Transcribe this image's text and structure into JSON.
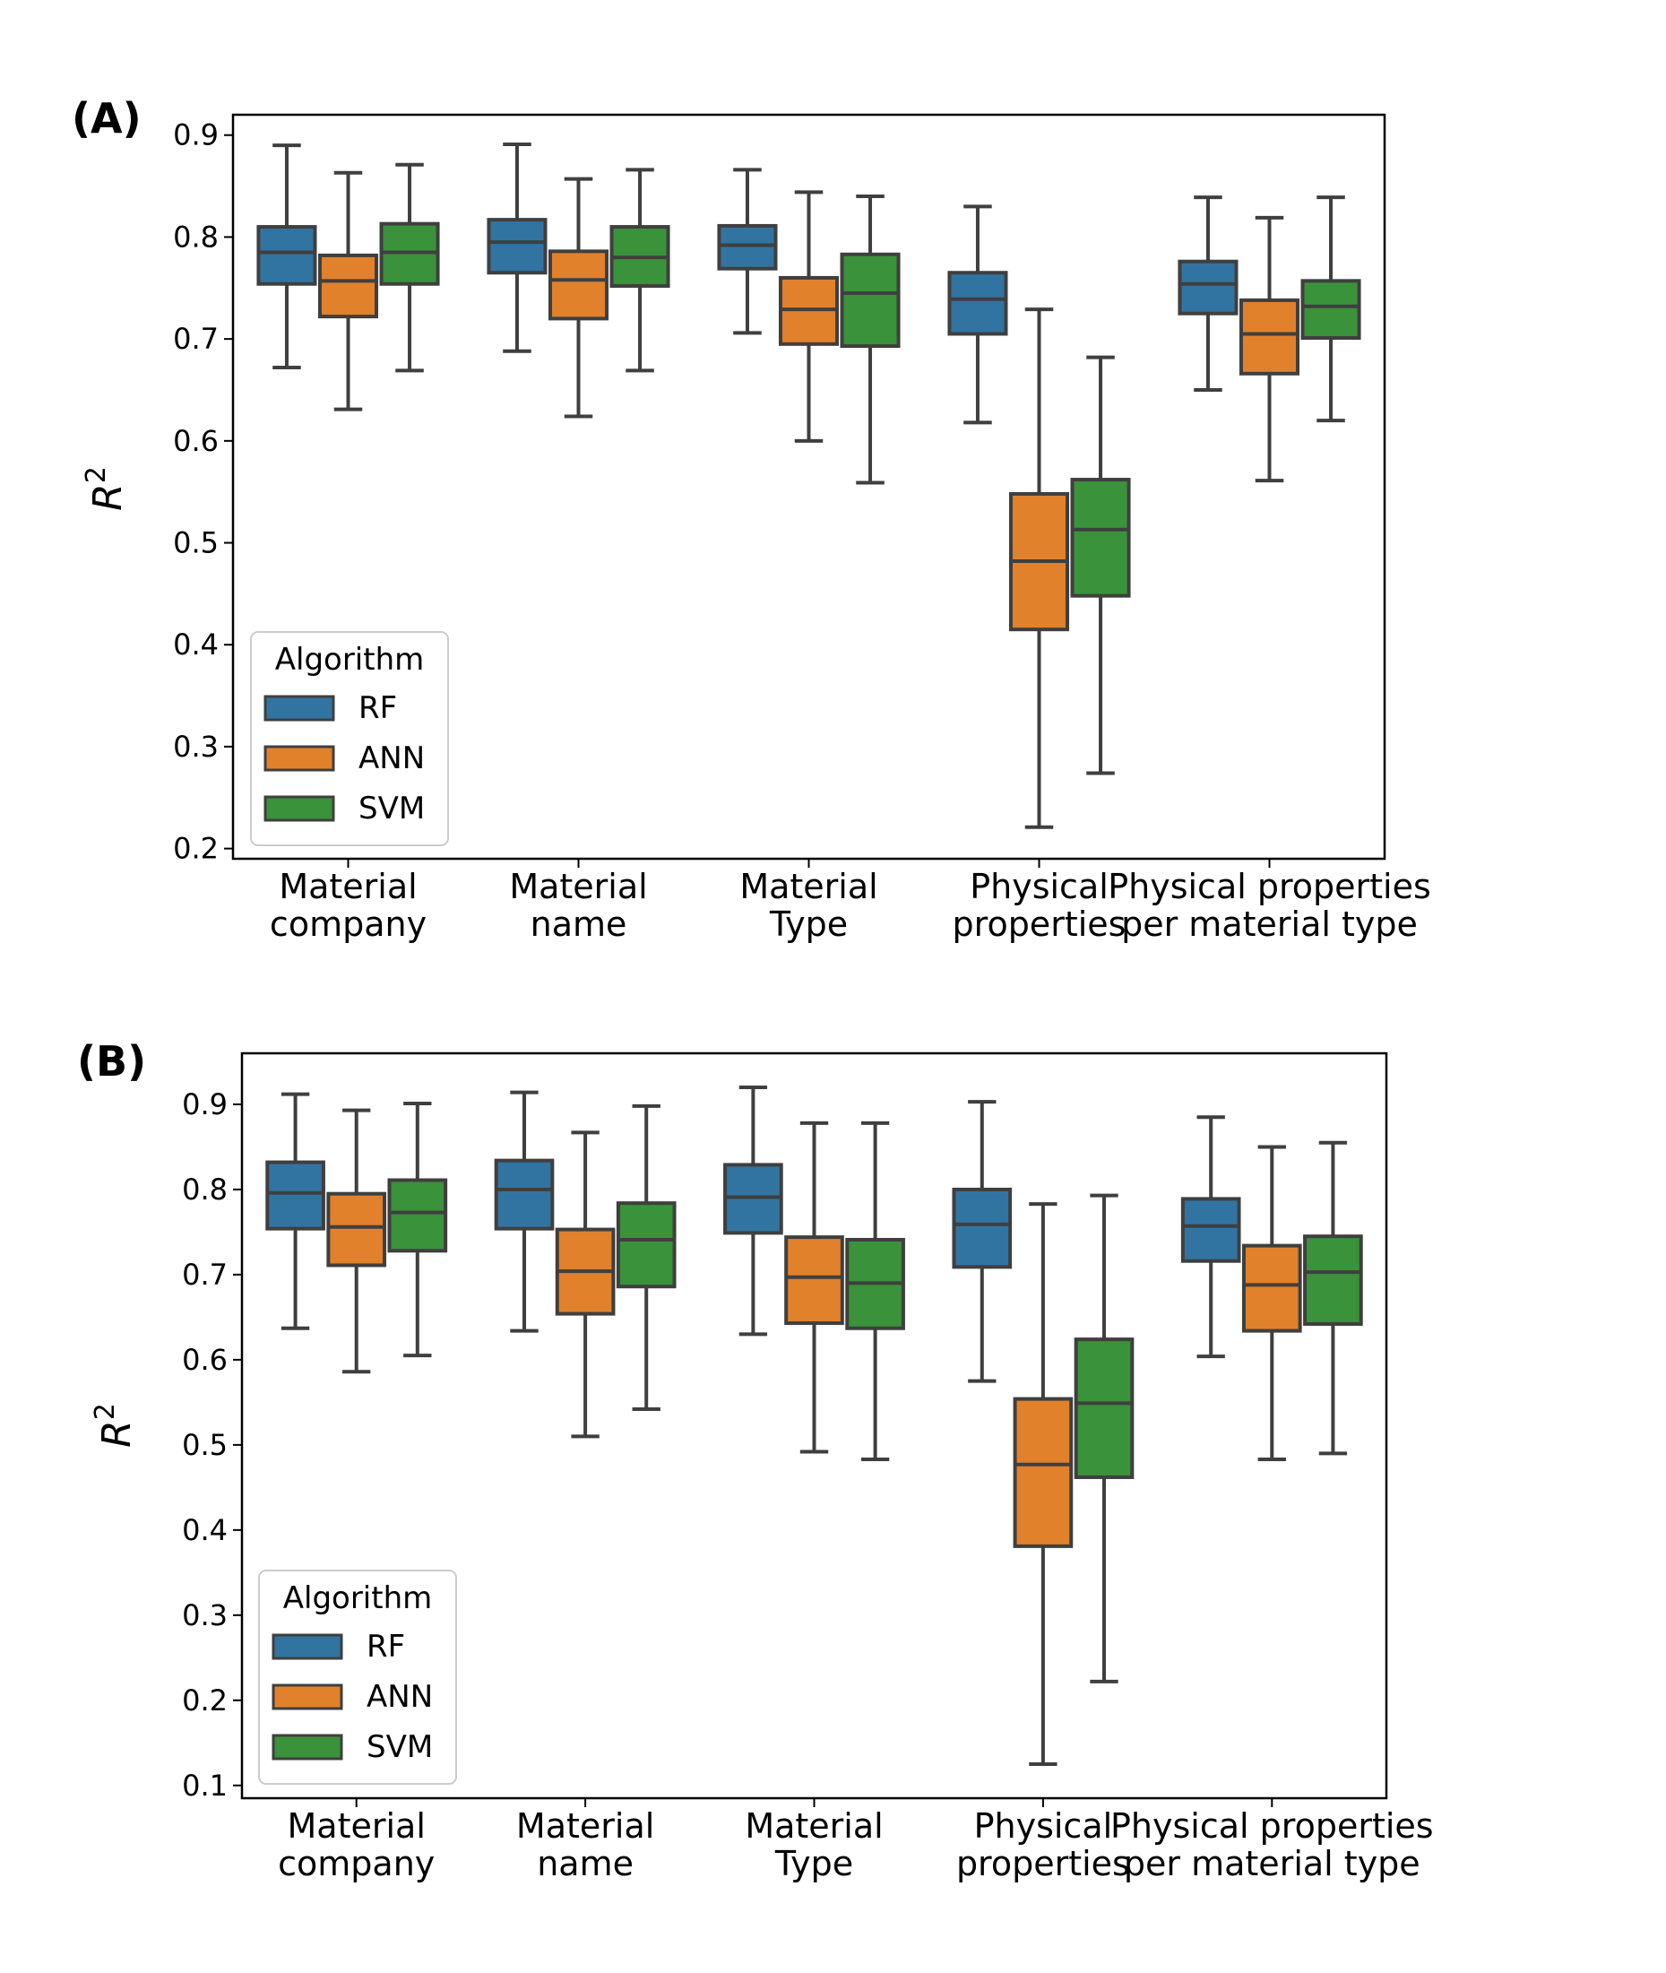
{
  "chart_data": [
    {
      "panel_label": "(A)",
      "type": "box",
      "ylabel": "R",
      "ylabel_superscript": "2",
      "ylim": [
        0.19,
        0.92
      ],
      "yticks": [
        "0.2",
        "0.3",
        "0.4",
        "0.5",
        "0.6",
        "0.7",
        "0.8",
        "0.9"
      ],
      "categories": [
        [
          "Material",
          "company"
        ],
        [
          "Material",
          "name"
        ],
        [
          "Material",
          "Type"
        ],
        [
          "Physical",
          "properties"
        ],
        [
          "Physical properties",
          "per material type"
        ]
      ],
      "legend": {
        "title": "Algorithm",
        "position": "lower-left"
      },
      "grid": false,
      "series": [
        {
          "name": "RF",
          "color": "#3274a1",
          "boxes": [
            {
              "min": 0.672,
              "q1": 0.754,
              "median": 0.785,
              "q3": 0.81,
              "max": 0.89
            },
            {
              "min": 0.688,
              "q1": 0.765,
              "median": 0.795,
              "q3": 0.817,
              "max": 0.891
            },
            {
              "min": 0.706,
              "q1": 0.769,
              "median": 0.792,
              "q3": 0.811,
              "max": 0.866
            },
            {
              "min": 0.618,
              "q1": 0.705,
              "median": 0.739,
              "q3": 0.765,
              "max": 0.83
            },
            {
              "min": 0.65,
              "q1": 0.725,
              "median": 0.754,
              "q3": 0.776,
              "max": 0.839
            }
          ]
        },
        {
          "name": "ANN",
          "color": "#e1812c",
          "boxes": [
            {
              "min": 0.631,
              "q1": 0.722,
              "median": 0.757,
              "q3": 0.782,
              "max": 0.863
            },
            {
              "min": 0.624,
              "q1": 0.72,
              "median": 0.758,
              "q3": 0.786,
              "max": 0.857
            },
            {
              "min": 0.6,
              "q1": 0.695,
              "median": 0.729,
              "q3": 0.76,
              "max": 0.844
            },
            {
              "min": 0.221,
              "q1": 0.415,
              "median": 0.482,
              "q3": 0.548,
              "max": 0.729
            },
            {
              "min": 0.561,
              "q1": 0.666,
              "median": 0.705,
              "q3": 0.738,
              "max": 0.819
            }
          ]
        },
        {
          "name": "SVM",
          "color": "#3a923a",
          "boxes": [
            {
              "min": 0.669,
              "q1": 0.754,
              "median": 0.785,
              "q3": 0.813,
              "max": 0.871
            },
            {
              "min": 0.669,
              "q1": 0.752,
              "median": 0.78,
              "q3": 0.81,
              "max": 0.866
            },
            {
              "min": 0.559,
              "q1": 0.693,
              "median": 0.745,
              "q3": 0.783,
              "max": 0.84
            },
            {
              "min": 0.274,
              "q1": 0.448,
              "median": 0.513,
              "q3": 0.562,
              "max": 0.682
            },
            {
              "min": 0.62,
              "q1": 0.701,
              "median": 0.732,
              "q3": 0.757,
              "max": 0.839
            }
          ]
        }
      ]
    },
    {
      "panel_label": "(B)",
      "type": "box",
      "ylabel": "R",
      "ylabel_superscript": "2",
      "ylim": [
        0.085,
        0.96
      ],
      "yticks": [
        "0.1",
        "0.2",
        "0.3",
        "0.4",
        "0.5",
        "0.6",
        "0.7",
        "0.8",
        "0.9"
      ],
      "categories": [
        [
          "Material",
          "company"
        ],
        [
          "Material",
          "name"
        ],
        [
          "Material",
          "Type"
        ],
        [
          "Physical",
          "properties"
        ],
        [
          "Physical properties",
          "per material type"
        ]
      ],
      "legend": {
        "title": "Algorithm",
        "position": "lower-left"
      },
      "grid": false,
      "series": [
        {
          "name": "RF",
          "color": "#3274a1",
          "boxes": [
            {
              "min": 0.637,
              "q1": 0.754,
              "median": 0.796,
              "q3": 0.832,
              "max": 0.912
            },
            {
              "min": 0.634,
              "q1": 0.754,
              "median": 0.8,
              "q3": 0.834,
              "max": 0.914
            },
            {
              "min": 0.63,
              "q1": 0.749,
              "median": 0.791,
              "q3": 0.829,
              "max": 0.92
            },
            {
              "min": 0.575,
              "q1": 0.709,
              "median": 0.759,
              "q3": 0.8,
              "max": 0.903
            },
            {
              "min": 0.604,
              "q1": 0.716,
              "median": 0.757,
              "q3": 0.789,
              "max": 0.885
            }
          ]
        },
        {
          "name": "ANN",
          "color": "#e1812c",
          "boxes": [
            {
              "min": 0.586,
              "q1": 0.711,
              "median": 0.756,
              "q3": 0.795,
              "max": 0.893
            },
            {
              "min": 0.51,
              "q1": 0.654,
              "median": 0.704,
              "q3": 0.753,
              "max": 0.867
            },
            {
              "min": 0.492,
              "q1": 0.643,
              "median": 0.697,
              "q3": 0.744,
              "max": 0.878
            },
            {
              "min": 0.125,
              "q1": 0.381,
              "median": 0.477,
              "q3": 0.554,
              "max": 0.783
            },
            {
              "min": 0.483,
              "q1": 0.634,
              "median": 0.688,
              "q3": 0.734,
              "max": 0.85
            }
          ]
        },
        {
          "name": "SVM",
          "color": "#3a923a",
          "boxes": [
            {
              "min": 0.605,
              "q1": 0.728,
              "median": 0.773,
              "q3": 0.811,
              "max": 0.901
            },
            {
              "min": 0.542,
              "q1": 0.686,
              "median": 0.741,
              "q3": 0.784,
              "max": 0.898
            },
            {
              "min": 0.483,
              "q1": 0.637,
              "median": 0.69,
              "q3": 0.741,
              "max": 0.878
            },
            {
              "min": 0.222,
              "q1": 0.462,
              "median": 0.549,
              "q3": 0.624,
              "max": 0.793
            },
            {
              "min": 0.49,
              "q1": 0.642,
              "median": 0.703,
              "q3": 0.745,
              "max": 0.855
            }
          ]
        }
      ]
    }
  ]
}
